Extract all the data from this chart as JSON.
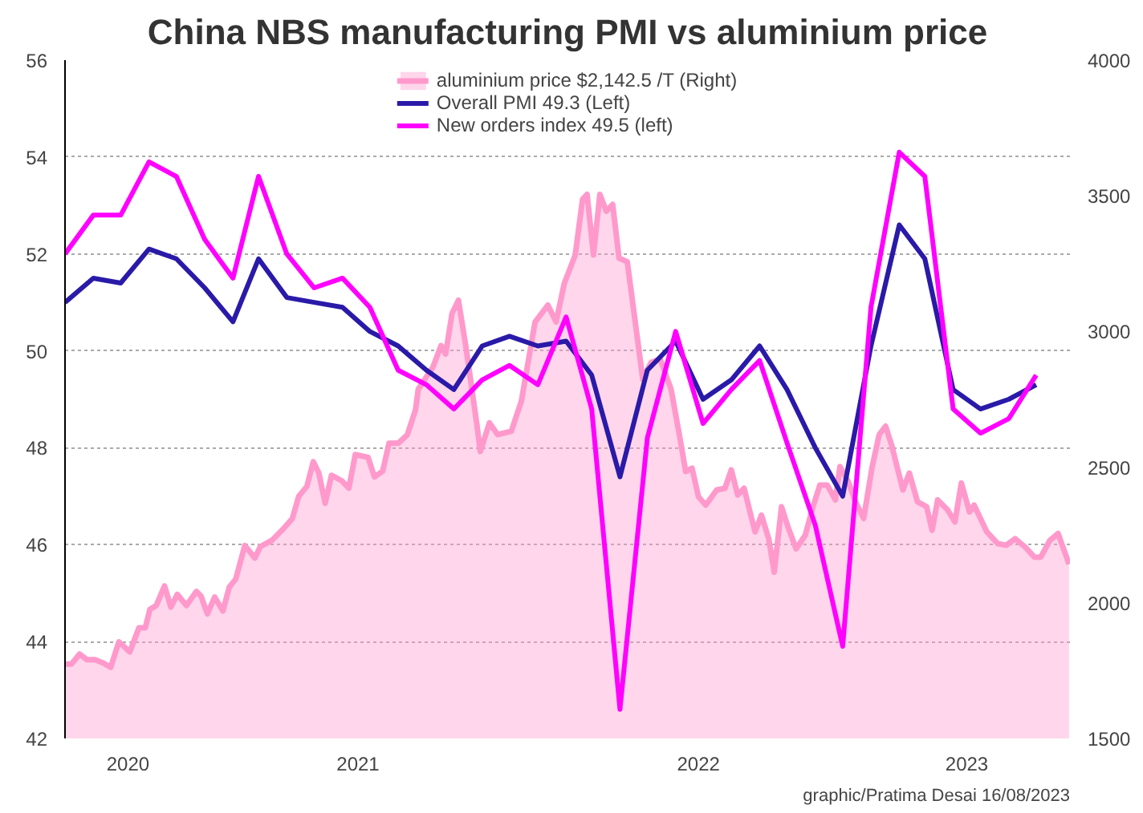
{
  "chart_data": {
    "type": "line",
    "title": "China NBS manufacturing PMI vs aluminium price",
    "xlim": [
      "2020-08-01",
      "2023-08-07"
    ],
    "xticks": [
      {
        "value": "2020-10-09",
        "label": "2020"
      },
      {
        "value": "2021-06-18",
        "label": "2021"
      },
      {
        "value": "2022-06-26",
        "label": "2022"
      },
      {
        "value": "2023-04-16",
        "label": "2023"
      }
    ],
    "ylim": [
      42,
      56
    ],
    "yticks": [
      42,
      44,
      46,
      48,
      50,
      52,
      54,
      56
    ],
    "y2lim": [
      1500,
      4000
    ],
    "y2ticks": [
      1500,
      2000,
      2500,
      3000,
      3500,
      4000
    ],
    "grid": "y",
    "legend": "top",
    "series": [
      {
        "name": "aluminium price $2,142.5 /T (Right)",
        "type": "area",
        "axis": "y2",
        "color": "#ff99cc",
        "x": [
          "2020-08-01",
          "2020-08-08",
          "2020-08-17",
          "2020-08-25",
          "2020-09-03",
          "2020-09-12",
          "2020-09-20",
          "2020-09-29",
          "2020-10-11",
          "2020-10-21",
          "2020-10-28",
          "2020-11-02",
          "2020-11-09",
          "2020-11-18",
          "2020-11-25",
          "2020-12-02",
          "2020-12-12",
          "2020-12-23",
          "2020-12-28",
          "2021-01-04",
          "2021-01-12",
          "2021-01-21",
          "2021-01-28",
          "2021-02-04",
          "2021-02-14",
          "2021-02-25",
          "2021-03-03",
          "2021-03-16",
          "2021-03-28",
          "2021-04-07",
          "2021-04-14",
          "2021-04-23",
          "2021-04-30",
          "2021-05-06",
          "2021-05-13",
          "2021-05-20",
          "2021-05-31",
          "2021-06-08",
          "2021-06-15",
          "2021-06-29",
          "2021-07-06",
          "2021-07-15",
          "2021-07-22",
          "2021-08-01",
          "2021-08-11",
          "2021-08-20",
          "2021-08-23",
          "2021-09-08",
          "2021-09-17",
          "2021-09-22",
          "2021-09-29",
          "2021-10-06",
          "2021-10-14",
          "2021-10-26",
          "2021-10-30",
          "2021-11-09",
          "2021-11-18",
          "2021-12-03",
          "2021-12-14",
          "2021-12-29",
          "2022-01-12",
          "2022-01-21",
          "2022-01-30",
          "2022-02-11",
          "2022-02-19",
          "2022-02-24",
          "2022-03-03",
          "2022-03-10",
          "2022-03-17",
          "2022-03-24",
          "2022-03-31",
          "2022-04-09",
          "2022-04-17",
          "2022-04-26",
          "2022-05-05",
          "2022-05-15",
          "2022-05-27",
          "2022-06-05",
          "2022-06-12",
          "2022-06-19",
          "2022-06-26",
          "2022-07-04",
          "2022-07-16",
          "2022-07-25",
          "2022-08-01",
          "2022-08-08",
          "2022-08-15",
          "2022-08-27",
          "2022-09-03",
          "2022-09-11",
          "2022-09-17",
          "2022-09-25",
          "2022-10-02",
          "2022-10-11",
          "2022-10-21",
          "2022-10-30",
          "2022-11-06",
          "2022-11-14",
          "2022-11-23",
          "2022-11-28",
          "2022-12-07",
          "2022-12-15",
          "2022-12-24",
          "2023-01-02",
          "2023-01-10",
          "2023-01-17",
          "2023-01-24",
          "2023-02-05",
          "2023-02-12",
          "2023-02-21",
          "2023-03-03",
          "2023-03-09",
          "2023-03-15",
          "2023-03-26",
          "2023-04-03",
          "2023-04-10",
          "2023-04-19",
          "2023-04-24",
          "2023-05-08",
          "2023-05-20",
          "2023-05-29",
          "2023-06-08",
          "2023-06-19",
          "2023-06-29",
          "2023-07-06",
          "2023-07-16",
          "2023-07-25",
          "2023-08-06"
        ],
        "values": [
          1774,
          1774,
          1811,
          1790,
          1790,
          1778,
          1762,
          1856,
          1819,
          1908,
          1908,
          1976,
          1990,
          2062,
          1984,
          2031,
          1990,
          2042,
          2025,
          1959,
          2021,
          1970,
          2058,
          2087,
          2211,
          2165,
          2207,
          2231,
          2272,
          2310,
          2392,
          2429,
          2520,
          2479,
          2367,
          2470,
          2450,
          2423,
          2546,
          2536,
          2464,
          2485,
          2588,
          2588,
          2619,
          2711,
          2787,
          2868,
          2948,
          2917,
          3066,
          3115,
          2948,
          2663,
          2558,
          2663,
          2620,
          2632,
          2744,
          3035,
          3097,
          3035,
          3177,
          3282,
          3487,
          3505,
          3282,
          3505,
          3443,
          3468,
          3270,
          3257,
          3053,
          2824,
          2886,
          2898,
          2787,
          2620,
          2484,
          2496,
          2391,
          2360,
          2416,
          2422,
          2490,
          2397,
          2422,
          2261,
          2323,
          2236,
          2113,
          2354,
          2280,
          2199,
          2249,
          2360,
          2434,
          2434,
          2379,
          2502,
          2447,
          2372,
          2311,
          2496,
          2620,
          2651,
          2577,
          2416,
          2478,
          2372,
          2354,
          2267,
          2379,
          2342,
          2298,
          2441,
          2335,
          2360,
          2261,
          2218,
          2212,
          2236,
          2205,
          2168,
          2168,
          2230,
          2255,
          2142.5
        ]
      },
      {
        "name": "Overall PMI 49.3 (Left)",
        "color": "#2a1aa8",
        "x": [
          "2020-08-01",
          "2020-09-01",
          "2020-10-01",
          "2020-11-01",
          "2020-12-01",
          "2021-01-01",
          "2021-02-01",
          "2021-03-01",
          "2021-04-01",
          "2021-05-01",
          "2021-06-01",
          "2021-07-01",
          "2021-08-01",
          "2021-09-01",
          "2021-10-01",
          "2021-11-01",
          "2021-12-01",
          "2022-01-01",
          "2022-02-01",
          "2022-03-01",
          "2022-04-01",
          "2022-05-01",
          "2022-06-01",
          "2022-07-01",
          "2022-08-01",
          "2022-09-01",
          "2022-10-01",
          "2022-11-01",
          "2022-12-01",
          "2023-01-01",
          "2023-02-01",
          "2023-03-01",
          "2023-04-01",
          "2023-05-01",
          "2023-06-01",
          "2023-07-01"
        ],
        "values": [
          51.0,
          51.5,
          51.4,
          52.1,
          51.9,
          51.3,
          50.6,
          51.9,
          51.1,
          51.0,
          50.9,
          50.4,
          50.1,
          49.6,
          49.2,
          50.1,
          50.3,
          50.1,
          50.2,
          49.5,
          47.4,
          49.6,
          50.2,
          49.0,
          49.4,
          50.1,
          49.2,
          48.0,
          47.0,
          50.1,
          52.6,
          51.9,
          49.2,
          48.8,
          49.0,
          49.3
        ]
      },
      {
        "name": "New orders index 49.5 (left)",
        "color": "#ff00ff",
        "x": [
          "2020-08-01",
          "2020-09-01",
          "2020-10-01",
          "2020-11-01",
          "2020-12-01",
          "2021-01-01",
          "2021-02-01",
          "2021-03-01",
          "2021-04-01",
          "2021-05-01",
          "2021-06-01",
          "2021-07-01",
          "2021-08-01",
          "2021-09-01",
          "2021-10-01",
          "2021-11-01",
          "2021-12-01",
          "2022-01-01",
          "2022-02-01",
          "2022-03-01",
          "2022-04-01",
          "2022-05-01",
          "2022-06-01",
          "2022-07-01",
          "2022-08-01",
          "2022-09-01",
          "2022-10-01",
          "2022-11-01",
          "2022-12-01",
          "2023-01-01",
          "2023-02-01",
          "2023-03-01",
          "2023-04-01",
          "2023-05-01",
          "2023-06-01",
          "2023-07-01"
        ],
        "values": [
          52.0,
          52.8,
          52.8,
          53.9,
          53.6,
          52.3,
          51.5,
          53.6,
          52.0,
          51.3,
          51.5,
          50.9,
          49.6,
          49.3,
          48.8,
          49.4,
          49.7,
          49.3,
          50.7,
          48.8,
          42.6,
          48.2,
          50.4,
          48.5,
          49.2,
          49.8,
          48.1,
          46.4,
          43.9,
          50.9,
          54.1,
          53.6,
          48.8,
          48.3,
          48.6,
          49.5
        ]
      }
    ],
    "annotations": [
      "graphic/Pratima Desai 16/08/2023"
    ]
  }
}
